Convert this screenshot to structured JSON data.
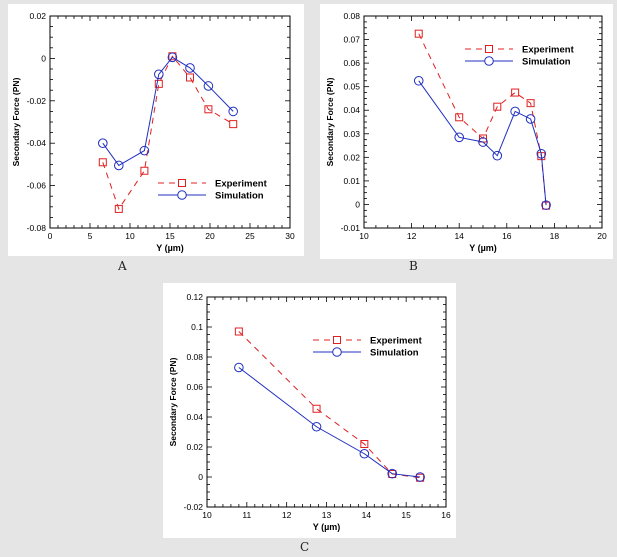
{
  "chart_data": [
    {
      "panel": "A",
      "type": "line",
      "xlabel": "Y (µm)",
      "ylabel": "Secondary Force (PN)",
      "xlim": [
        0,
        30
      ],
      "ylim": [
        -0.08,
        0.02
      ],
      "xticks": [
        "0",
        "5",
        "10",
        "15",
        "20",
        "25",
        "30"
      ],
      "yticks": [
        "-0.08",
        "-0.06",
        "-0.04",
        "-0.02",
        "0",
        "0.02"
      ],
      "grid": false,
      "legend": "bottom-right",
      "series": [
        {
          "name": "Experiment",
          "color": "#e02020",
          "style": "dashed",
          "marker": "square",
          "x": [
            6.6,
            8.6,
            11.8,
            13.6,
            15.3,
            17.5,
            19.8,
            22.9
          ],
          "y": [
            -0.049,
            -0.071,
            -0.053,
            -0.012,
            0.001,
            -0.009,
            -0.024,
            -0.031
          ]
        },
        {
          "name": "Simulation",
          "color": "#2030c0",
          "style": "solid",
          "marker": "circle",
          "x": [
            6.6,
            8.6,
            11.8,
            13.6,
            15.3,
            17.5,
            19.8,
            22.9
          ],
          "y": [
            -0.04,
            -0.0505,
            -0.0435,
            -0.0075,
            0.0005,
            -0.0045,
            -0.013,
            -0.025
          ]
        }
      ]
    },
    {
      "panel": "B",
      "type": "line",
      "xlabel": "Y (µm)",
      "ylabel": "Secondary Force (PN)",
      "xlim": [
        10,
        20
      ],
      "ylim": [
        -0.01,
        0.08
      ],
      "xticks": [
        "10",
        "12",
        "14",
        "16",
        "18",
        "20"
      ],
      "yticks": [
        "-0.01",
        "0",
        "0.01",
        "0.02",
        "0.03",
        "0.04",
        "0.05",
        "0.06",
        "0.07",
        "0.08"
      ],
      "grid": false,
      "legend": "top-right",
      "series": [
        {
          "name": "Experiment",
          "color": "#e02020",
          "style": "dashed",
          "marker": "square",
          "x": [
            12.3,
            14.0,
            15.0,
            15.6,
            16.35,
            17.0,
            17.45,
            17.65
          ],
          "y": [
            0.0725,
            0.037,
            0.028,
            0.0415,
            0.0475,
            0.043,
            0.0205,
            -0.0005
          ]
        },
        {
          "name": "Simulation",
          "color": "#2030c0",
          "style": "solid",
          "marker": "circle",
          "x": [
            12.3,
            14.0,
            15.0,
            15.6,
            16.35,
            17.0,
            17.45,
            17.65
          ],
          "y": [
            0.0525,
            0.0285,
            0.0265,
            0.0207,
            0.0395,
            0.0363,
            0.0215,
            -0.0003
          ]
        }
      ]
    },
    {
      "panel": "C",
      "type": "line",
      "xlabel": "Y (µm)",
      "ylabel": "Secondary Force (PN)",
      "xlim": [
        10,
        16
      ],
      "ylim": [
        -0.02,
        0.12
      ],
      "xticks": [
        "10",
        "11",
        "12",
        "13",
        "14",
        "15",
        "16"
      ],
      "yticks": [
        "-0.02",
        "0",
        "0.02",
        "0.04",
        "0.06",
        "0.08",
        "0.1",
        "0.12"
      ],
      "grid": false,
      "legend": "top-right",
      "series": [
        {
          "name": "Experiment",
          "color": "#e02020",
          "style": "dashed",
          "marker": "square",
          "x": [
            10.8,
            12.75,
            13.95,
            14.65,
            15.35
          ],
          "y": [
            0.097,
            0.0455,
            0.022,
            0.002,
            -0.0005
          ]
        },
        {
          "name": "Simulation",
          "color": "#2030c0",
          "style": "solid",
          "marker": "circle",
          "x": [
            10.8,
            12.75,
            13.95,
            14.65,
            15.35
          ],
          "y": [
            0.073,
            0.0335,
            0.0155,
            0.0022,
            0.0
          ]
        }
      ]
    }
  ],
  "panel_labels": {
    "a": "A",
    "b": "B",
    "c": "C"
  }
}
